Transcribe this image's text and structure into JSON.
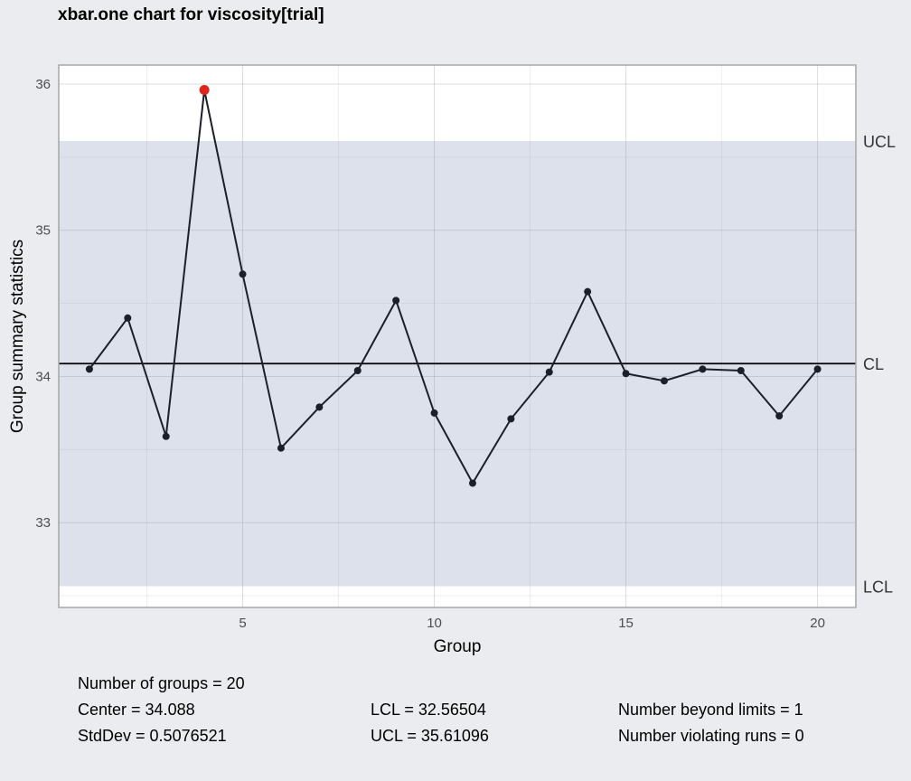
{
  "title": "xbar.one chart for viscosity[trial]",
  "chart_data": {
    "type": "line",
    "title": "xbar.one chart for viscosity[trial]",
    "xlabel": "Group",
    "ylabel": "Group summary statistics",
    "x": [
      1,
      2,
      3,
      4,
      5,
      6,
      7,
      8,
      9,
      10,
      11,
      12,
      13,
      14,
      15,
      16,
      17,
      18,
      19,
      20
    ],
    "series": [
      {
        "values": [
          34.05,
          34.4,
          33.59,
          35.96,
          34.7,
          33.51,
          33.79,
          34.04,
          34.52,
          33.75,
          33.27,
          33.71,
          34.03,
          34.58,
          34.02,
          33.97,
          34.05,
          34.04,
          33.73,
          34.05
        ]
      }
    ],
    "beyond_limits": [
      4
    ],
    "center_line": 34.088,
    "lcl": 32.56504,
    "ucl": 35.61096,
    "xlim": [
      0.2,
      21.0
    ],
    "ylim": [
      32.42,
      36.13
    ],
    "x_ticks": [
      5,
      10,
      15,
      20
    ],
    "y_ticks": [
      33,
      34,
      35,
      36
    ],
    "grid": true,
    "limit_labels": {
      "ucl": "UCL",
      "cl": "CL",
      "lcl": "LCL"
    },
    "colors": {
      "background": "#EBECF0",
      "panel": "#FFFFFF",
      "control_band": "#DCE1EB",
      "line": "#1C1F2A",
      "violation_point": "#E0241B",
      "center_line": "#000000",
      "grid": "#D9D9D9"
    }
  },
  "stats": {
    "groups": "Number of groups = 20",
    "center": "Center = 34.088",
    "stddev": "StdDev = 0.5076521",
    "lcl": "LCL = 32.56504",
    "ucl": "UCL = 35.61096",
    "beyond": "Number beyond limits = 1",
    "violating": "Number violating runs = 0"
  }
}
